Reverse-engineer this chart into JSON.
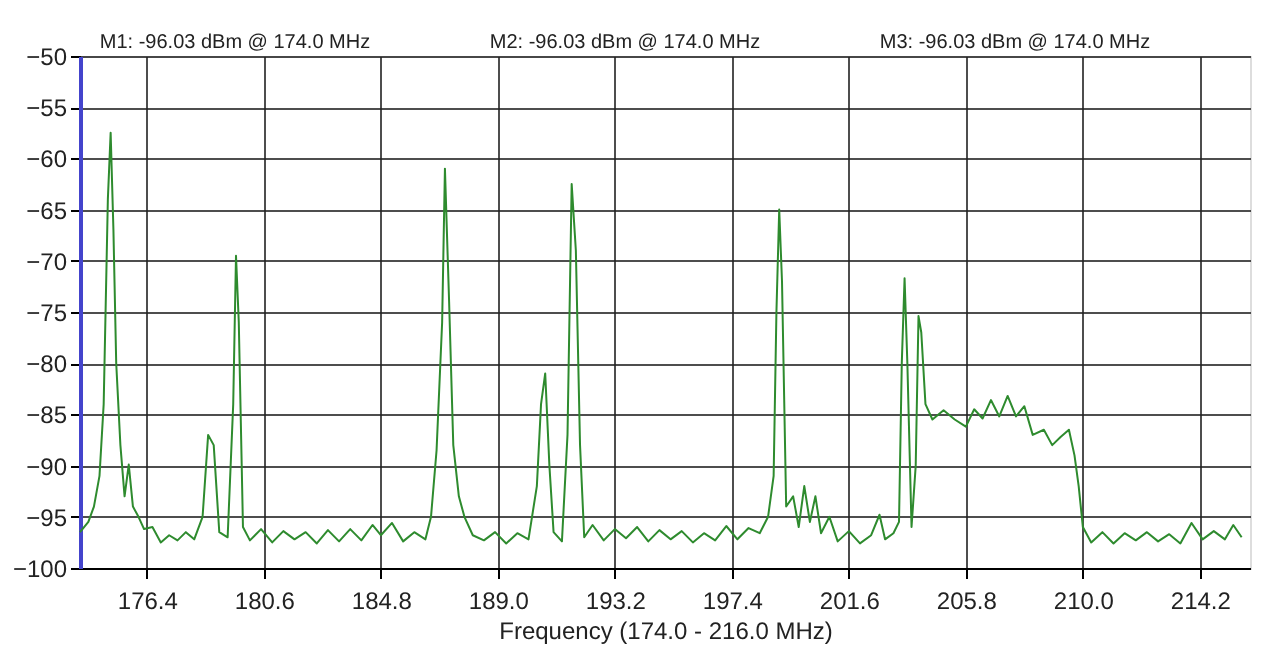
{
  "chart_data": {
    "type": "line",
    "xlabel": "Frequency (174.0 - 216.0 MHz)",
    "annotations": [
      "M1: -96.03 dBm @ 174.0 MHz",
      "M2: -96.03 dBm @ 174.0 MHz",
      "M3: -96.03 dBm @ 174.0 MHz"
    ],
    "xlim": [
      174.0,
      216.0
    ],
    "xticks": [
      {
        "value": 176.4,
        "label": "176.4"
      },
      {
        "value": 180.6,
        "label": "180.6"
      },
      {
        "value": 184.8,
        "label": "184.8"
      },
      {
        "value": 189.0,
        "label": "189.0"
      },
      {
        "value": 193.2,
        "label": "193.2"
      },
      {
        "value": 197.4,
        "label": "197.4"
      },
      {
        "value": 201.6,
        "label": "201.6"
      },
      {
        "value": 205.8,
        "label": "205.8"
      },
      {
        "value": 210.0,
        "label": "210.0"
      },
      {
        "value": 214.2,
        "label": "214.2"
      }
    ],
    "ylim": [
      -100,
      -50
    ],
    "yticks": [
      -100,
      -95,
      -90,
      -85,
      -80,
      -75,
      -70,
      -65,
      -60,
      -55,
      -50
    ],
    "grid": true,
    "marker": "none",
    "line_style": "solid",
    "series": [
      {
        "color": "#2e8b2e",
        "x": [
          174.0,
          174.3,
          174.5,
          174.7,
          174.85,
          175.0,
          175.1,
          175.2,
          175.3,
          175.45,
          175.6,
          175.75,
          175.9,
          176.1,
          176.3,
          176.6,
          176.9,
          177.2,
          177.5,
          177.8,
          178.1,
          178.4,
          178.6,
          178.8,
          179.0,
          179.3,
          179.5,
          179.6,
          179.7,
          179.85,
          180.1,
          180.5,
          180.9,
          181.3,
          181.7,
          182.1,
          182.5,
          182.9,
          183.3,
          183.7,
          184.1,
          184.5,
          184.8,
          185.2,
          185.6,
          186.0,
          186.4,
          186.6,
          186.8,
          187.0,
          187.1,
          187.25,
          187.4,
          187.6,
          187.8,
          188.1,
          188.5,
          188.9,
          189.3,
          189.7,
          190.1,
          190.4,
          190.55,
          190.7,
          190.85,
          191.0,
          191.3,
          191.5,
          191.65,
          191.8,
          191.95,
          192.1,
          192.4,
          192.8,
          193.2,
          193.6,
          194.0,
          194.4,
          194.8,
          195.2,
          195.6,
          196.0,
          196.4,
          196.8,
          197.2,
          197.6,
          198.0,
          198.4,
          198.7,
          198.9,
          199.0,
          199.1,
          199.2,
          199.35,
          199.6,
          199.8,
          200.0,
          200.2,
          200.4,
          200.6,
          200.9,
          201.2,
          201.6,
          202.0,
          202.4,
          202.7,
          202.9,
          203.2,
          203.4,
          203.5,
          203.6,
          203.7,
          203.85,
          204.0,
          204.1,
          204.2,
          204.35,
          204.6,
          205.0,
          205.4,
          205.8,
          206.1,
          206.4,
          206.7,
          207.0,
          207.3,
          207.6,
          207.9,
          208.2,
          208.6,
          208.9,
          209.2,
          209.5,
          209.7,
          209.85,
          210.0,
          210.3,
          210.7,
          211.1,
          211.5,
          211.9,
          212.3,
          212.7,
          213.1,
          213.5,
          213.9,
          214.3,
          214.7,
          215.1,
          215.4,
          215.7
        ],
        "values": [
          -96.5,
          -95.5,
          -94,
          -91,
          -84,
          -64,
          -57.5,
          -67,
          -80,
          -88,
          -93,
          -89.9,
          -94,
          -95,
          -96.2,
          -96,
          -97.5,
          -96.8,
          -97.3,
          -96.5,
          -97.2,
          -95,
          -87,
          -88,
          -96.5,
          -97,
          -84,
          -69.5,
          -76,
          -96,
          -97.3,
          -96.2,
          -97.5,
          -96.4,
          -97.2,
          -96.5,
          -97.6,
          -96.3,
          -97.4,
          -96.2,
          -97.3,
          -95.8,
          -96.8,
          -95.6,
          -97.4,
          -96.5,
          -97.2,
          -95,
          -88.5,
          -76,
          -61,
          -74,
          -88,
          -93,
          -95,
          -96.8,
          -97.3,
          -96.5,
          -97.6,
          -96.6,
          -97.2,
          -92,
          -84,
          -81,
          -90,
          -96.5,
          -97.4,
          -87,
          -62.5,
          -69,
          -88,
          -97,
          -95.8,
          -97.3,
          -96.2,
          -97.1,
          -96,
          -97.4,
          -96.3,
          -97.2,
          -96.4,
          -97.5,
          -96.6,
          -97.3,
          -95.9,
          -97.2,
          -96.1,
          -96.6,
          -95,
          -91,
          -75,
          -65,
          -72,
          -94,
          -93,
          -96,
          -92,
          -95.5,
          -93,
          -96.6,
          -95,
          -97.4,
          -96.4,
          -97.6,
          -96.8,
          -94.8,
          -97.2,
          -96.6,
          -95.5,
          -80,
          -71.7,
          -80,
          -96,
          -90,
          -75.4,
          -77,
          -84,
          -85.5,
          -84.6,
          -85.5,
          -86.2,
          -84.5,
          -85.4,
          -83.6,
          -85.2,
          -83.2,
          -85.2,
          -84.2,
          -87,
          -86.5,
          -88,
          -87.2,
          -86.5,
          -89,
          -92,
          -96,
          -97.5,
          -96.5,
          -97.6,
          -96.6,
          -97.3,
          -96.5,
          -97.4,
          -96.7,
          -97.6,
          -95.6,
          -97.2,
          -96.4,
          -97.2,
          -95.8,
          -97
        ]
      }
    ]
  }
}
